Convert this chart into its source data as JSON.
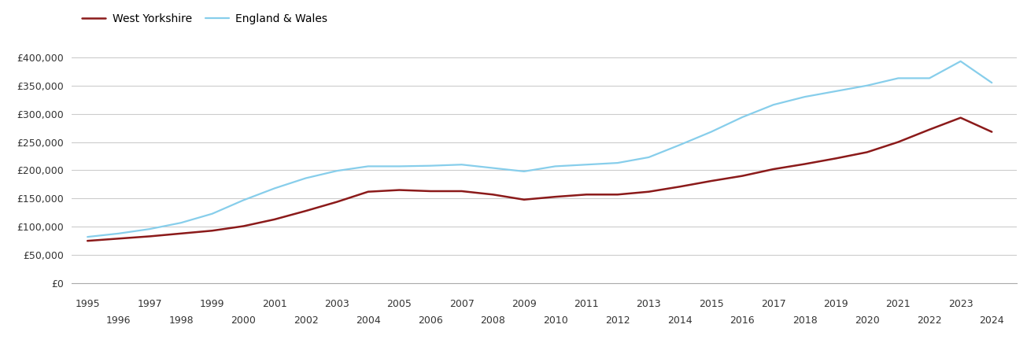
{
  "west_yorkshire": {
    "years": [
      1995,
      1996,
      1997,
      1998,
      1999,
      2000,
      2001,
      2002,
      2003,
      2004,
      2005,
      2006,
      2007,
      2008,
      2009,
      2010,
      2011,
      2012,
      2013,
      2014,
      2015,
      2016,
      2017,
      2018,
      2019,
      2020,
      2021,
      2022,
      2023,
      2024
    ],
    "values": [
      75000,
      79000,
      83000,
      88000,
      93000,
      101000,
      113000,
      128000,
      144000,
      162000,
      165000,
      163000,
      163000,
      157000,
      148000,
      153000,
      157000,
      157000,
      162000,
      171000,
      181000,
      190000,
      202000,
      211000,
      221000,
      232000,
      250000,
      272000,
      293000,
      268000
    ]
  },
  "england_wales": {
    "years": [
      1995,
      1996,
      1997,
      1998,
      1999,
      2000,
      2001,
      2002,
      2003,
      2004,
      2005,
      2006,
      2007,
      2008,
      2009,
      2010,
      2011,
      2012,
      2013,
      2014,
      2015,
      2016,
      2017,
      2018,
      2019,
      2020,
      2021,
      2022,
      2023,
      2024
    ],
    "values": [
      82000,
      88000,
      96000,
      107000,
      123000,
      147000,
      168000,
      186000,
      199000,
      207000,
      207000,
      208000,
      210000,
      204000,
      198000,
      207000,
      210000,
      213000,
      223000,
      245000,
      268000,
      294000,
      316000,
      330000,
      340000,
      350000,
      363000,
      363000,
      393000,
      355000
    ]
  },
  "wy_color": "#8B1A1A",
  "ew_color": "#87CEEB",
  "background_color": "#ffffff",
  "grid_color": "#cccccc",
  "ylim": [
    0,
    420000
  ],
  "yticks": [
    0,
    50000,
    100000,
    150000,
    200000,
    250000,
    300000,
    350000,
    400000
  ],
  "xlim_min": 1994.5,
  "xlim_max": 2024.8,
  "legend_labels": [
    "West Yorkshire",
    "England & Wales"
  ],
  "wy_linewidth": 1.8,
  "ew_linewidth": 1.6,
  "odd_years": [
    1995,
    1997,
    1999,
    2001,
    2003,
    2005,
    2007,
    2009,
    2011,
    2013,
    2015,
    2017,
    2019,
    2021,
    2023
  ],
  "even_years": [
    1996,
    1998,
    2000,
    2002,
    2004,
    2006,
    2008,
    2010,
    2012,
    2014,
    2016,
    2018,
    2020,
    2022,
    2024
  ]
}
